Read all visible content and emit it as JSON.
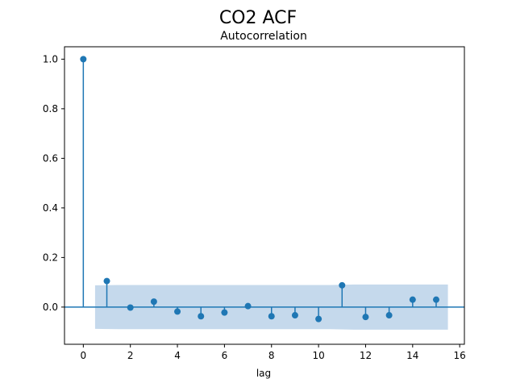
{
  "chart_data": {
    "type": "stem",
    "suptitle": "CO2 ACF",
    "title": "Autocorrelation",
    "xlabel": "lag",
    "ylabel": "",
    "xlim": [
      -0.8,
      16.2
    ],
    "ylim": [
      -0.15,
      1.05
    ],
    "xticks": [
      0,
      2,
      4,
      6,
      8,
      10,
      12,
      14,
      16
    ],
    "yticks": [
      0.0,
      0.2,
      0.4,
      0.6,
      0.8,
      1.0
    ],
    "xtick_labels": [
      "0",
      "2",
      "4",
      "6",
      "8",
      "10",
      "12",
      "14",
      "16"
    ],
    "ytick_labels": [
      "0.0",
      "0.2",
      "0.4",
      "0.6",
      "0.8",
      "1.0"
    ],
    "lags": [
      0,
      1,
      2,
      3,
      4,
      5,
      6,
      7,
      8,
      9,
      10,
      11,
      12,
      13,
      14,
      15
    ],
    "values": [
      1.0,
      0.105,
      -0.002,
      0.022,
      -0.018,
      -0.037,
      -0.022,
      0.004,
      -0.037,
      -0.033,
      -0.048,
      0.088,
      -0.04,
      -0.033,
      0.03,
      0.03
    ],
    "confidence_band": {
      "x": [
        0.5,
        1.5,
        2.5,
        3.5,
        4.5,
        5.5,
        6.5,
        7.5,
        8.5,
        9.5,
        10.5,
        11.5,
        12.5,
        13.5,
        14.5,
        15.5
      ],
      "upper": [
        0.088,
        0.089,
        0.089,
        0.089,
        0.089,
        0.089,
        0.089,
        0.089,
        0.089,
        0.089,
        0.089,
        0.091,
        0.091,
        0.091,
        0.091,
        0.091
      ],
      "lower": [
        -0.088,
        -0.089,
        -0.089,
        -0.089,
        -0.089,
        -0.089,
        -0.089,
        -0.089,
        -0.089,
        -0.089,
        -0.089,
        -0.091,
        -0.091,
        -0.091,
        -0.091,
        -0.091
      ]
    },
    "colors": {
      "stem": "#1f77b4",
      "band": "#c5d9ec",
      "axis": "#000000"
    },
    "grid": false,
    "legend": "none"
  }
}
